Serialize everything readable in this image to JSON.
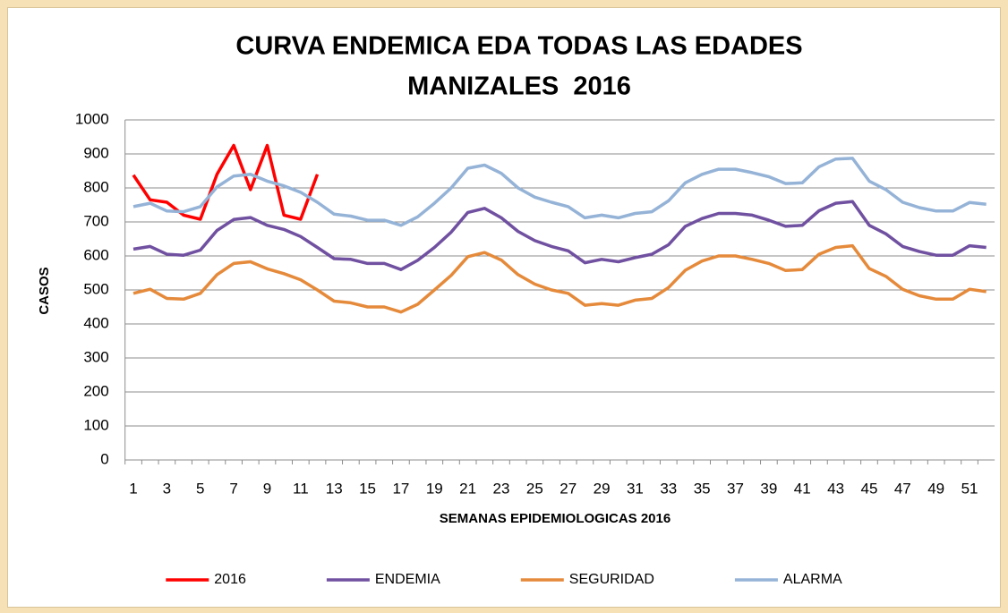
{
  "chart_data": {
    "type": "line",
    "title": [
      "CURVA ENDEMICA EDA TODAS LAS EDADES",
      "MANIZALES  2016"
    ],
    "x_label": "SEMANAS EPIDEMIOLOGICAS 2016",
    "y_label": "CASOS",
    "categories": [
      1,
      null,
      3,
      null,
      5,
      null,
      7,
      null,
      9,
      null,
      11,
      null,
      13,
      null,
      15,
      null,
      17,
      null,
      19,
      null,
      21,
      null,
      23,
      null,
      25,
      null,
      27,
      null,
      29,
      null,
      31,
      null,
      33,
      null,
      35,
      null,
      37,
      null,
      39,
      null,
      41,
      null,
      43,
      null,
      45,
      null,
      47,
      null,
      49,
      null,
      51,
      null
    ],
    "ylim": [
      0,
      1000
    ],
    "yticks": [
      0,
      100,
      200,
      300,
      400,
      500,
      600,
      700,
      800,
      900,
      1000
    ],
    "grid": true,
    "legend": "bottom",
    "series": [
      {
        "name": "2016",
        "color": "#ff0000",
        "values": [
          838,
          765,
          758,
          720,
          708,
          840,
          925,
          795,
          925,
          720,
          708,
          840,
          null,
          null,
          null,
          null,
          null,
          null,
          null,
          null,
          null,
          null,
          null,
          null,
          null,
          null,
          null,
          null,
          null,
          null,
          null,
          null,
          null,
          null,
          null,
          null,
          null,
          null,
          null,
          null,
          null,
          null,
          null,
          null,
          null,
          null,
          null,
          null,
          null,
          null,
          null,
          null
        ]
      },
      {
        "name": "ENDEMIA",
        "color": "#7050a0",
        "values": [
          620,
          628,
          605,
          602,
          617,
          675,
          707,
          713,
          690,
          678,
          657,
          625,
          592,
          590,
          578,
          578,
          560,
          587,
          625,
          670,
          728,
          740,
          712,
          672,
          645,
          628,
          615,
          580,
          590,
          583,
          595,
          605,
          633,
          687,
          710,
          725,
          725,
          720,
          705,
          687,
          690,
          733,
          755,
          760,
          690,
          665,
          628,
          613,
          602,
          602,
          630,
          625
        ]
      },
      {
        "name": "SEGURIDAD",
        "color": "#e58a3b",
        "values": [
          490,
          502,
          475,
          473,
          490,
          545,
          578,
          583,
          562,
          548,
          530,
          500,
          467,
          462,
          450,
          450,
          435,
          458,
          500,
          543,
          598,
          610,
          588,
          545,
          517,
          500,
          490,
          455,
          460,
          455,
          470,
          475,
          507,
          558,
          585,
          600,
          600,
          590,
          578,
          557,
          560,
          605,
          625,
          630,
          563,
          540,
          502,
          483,
          473,
          473,
          502,
          495
        ]
      },
      {
        "name": "ALARMA",
        "color": "#95b3d7",
        "values": [
          745,
          755,
          732,
          730,
          745,
          803,
          835,
          840,
          820,
          806,
          787,
          758,
          723,
          717,
          705,
          705,
          690,
          715,
          755,
          800,
          858,
          867,
          843,
          800,
          773,
          758,
          745,
          712,
          720,
          712,
          725,
          730,
          762,
          815,
          840,
          855,
          855,
          845,
          833,
          813,
          815,
          862,
          885,
          887,
          820,
          795,
          758,
          742,
          732,
          732,
          757,
          752
        ]
      }
    ]
  }
}
